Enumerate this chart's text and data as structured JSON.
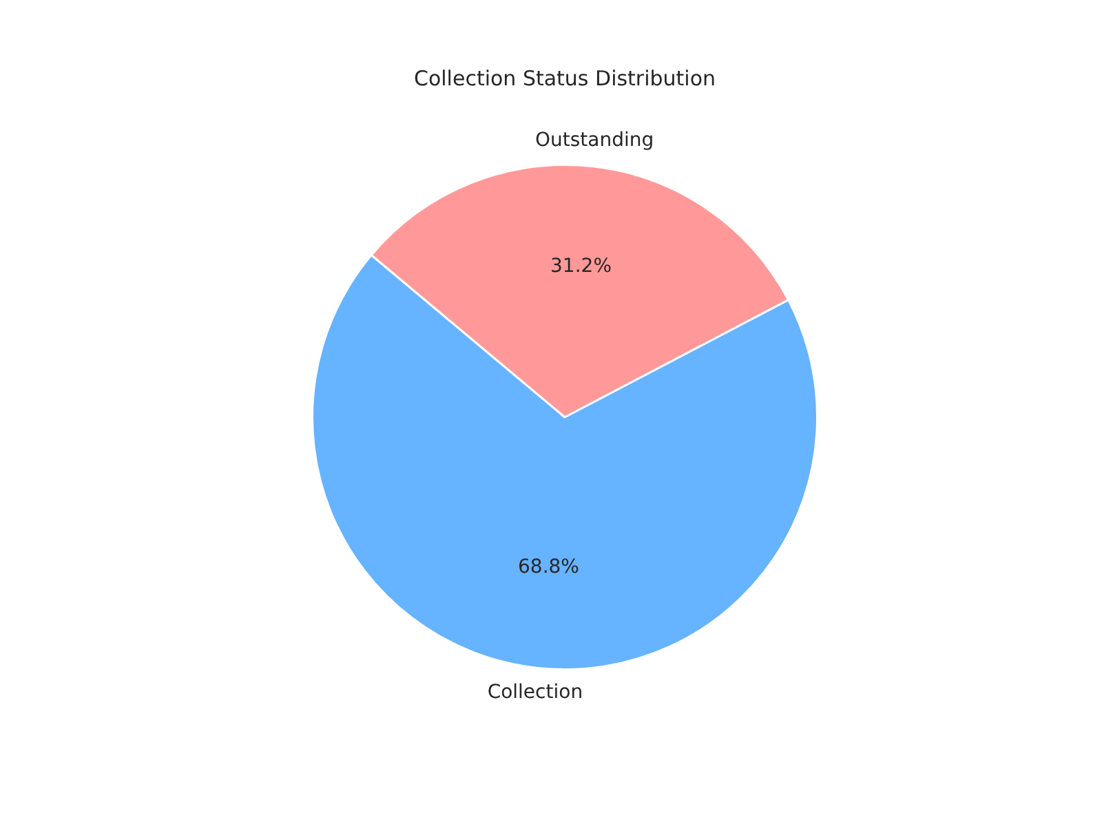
{
  "chart_data": {
    "type": "pie",
    "title": "Collection Status Distribution",
    "categories": [
      "Collection",
      "Outstanding"
    ],
    "values": [
      68.8,
      31.2
    ],
    "colors": [
      "#66b3ff",
      "#ff9999"
    ],
    "value_labels": [
      "68.8%",
      "31.2%"
    ],
    "legend": false
  }
}
